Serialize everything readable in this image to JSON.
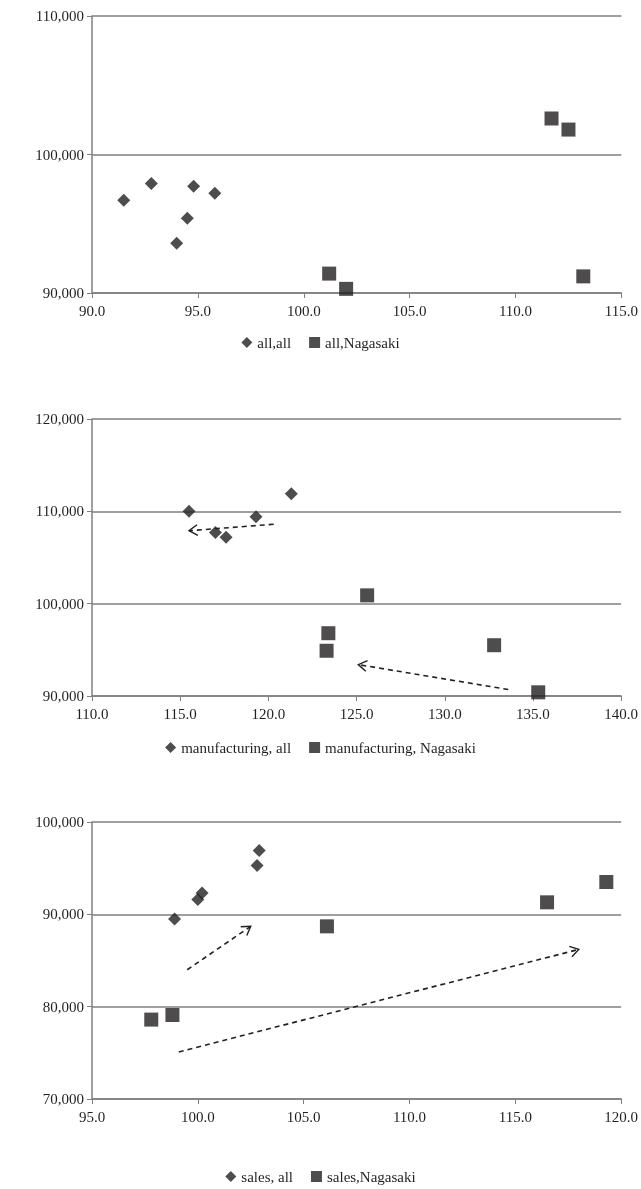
{
  "chart_data": [
    {
      "type": "scatter",
      "xlim": [
        90,
        115
      ],
      "xticks": [
        {
          "value": 90,
          "label": "90.0"
        },
        {
          "value": 95,
          "label": "95.0"
        },
        {
          "value": 100,
          "label": "100.0"
        },
        {
          "value": 105,
          "label": "105.0"
        },
        {
          "value": 110,
          "label": "110.0"
        },
        {
          "value": 115,
          "label": "115.0"
        }
      ],
      "ylim": [
        90000,
        110000
      ],
      "yticks": [
        {
          "value": 90000,
          "label": "90,000"
        },
        {
          "value": 100000,
          "label": "100,000"
        },
        {
          "value": 110000,
          "label": "110,000"
        }
      ],
      "grid": "y",
      "legend": "bottom",
      "series": [
        {
          "name": "all,all",
          "color": "#231f20",
          "marker": "diamond",
          "x": [
            91.5,
            92.8,
            94.0,
            94.5,
            94.8,
            95.8
          ],
          "values": [
            96700,
            97900,
            93600,
            95400,
            97700,
            97200
          ]
        },
        {
          "name": "all,Nagasaki",
          "color": "#231f20",
          "marker": "square",
          "x": [
            101.2,
            102.0,
            111.7,
            112.5,
            113.2
          ],
          "values": [
            91400,
            90300,
            102600,
            101800,
            91200
          ]
        }
      ]
    },
    {
      "type": "scatter",
      "xlim": [
        110,
        140
      ],
      "xticks": [
        {
          "value": 110,
          "label": "110.0"
        },
        {
          "value": 115,
          "label": "115.0"
        },
        {
          "value": 120,
          "label": "120.0"
        },
        {
          "value": 125,
          "label": "125.0"
        },
        {
          "value": 130,
          "label": "130.0"
        },
        {
          "value": 135,
          "label": "135.0"
        },
        {
          "value": 140,
          "label": "140.0"
        }
      ],
      "ylim": [
        90000,
        120000
      ],
      "yticks": [
        {
          "value": 90000,
          "label": "90,000"
        },
        {
          "value": 100000,
          "label": "100,000"
        },
        {
          "value": 110000,
          "label": "110,000"
        },
        {
          "value": 120000,
          "label": "120,000"
        }
      ],
      "grid": "y",
      "legend": "bottom",
      "series": [
        {
          "name": "manufacturing, all",
          "color": "#231f20",
          "marker": "diamond",
          "x": [
            115.5,
            117.0,
            117.6,
            119.3,
            121.3
          ],
          "values": [
            110000,
            107700,
            107200,
            109400,
            111900
          ]
        },
        {
          "name": "manufacturing, Nagasaki",
          "color": "#231f20",
          "marker": "square",
          "x": [
            123.3,
            123.4,
            125.6,
            132.8,
            135.3
          ],
          "values": [
            94900,
            96800,
            100900,
            95500,
            90400
          ]
        }
      ]
    },
    {
      "type": "scatter",
      "xlim": [
        95,
        120
      ],
      "xticks": [
        {
          "value": 95,
          "label": "95.0"
        },
        {
          "value": 100,
          "label": "100.0"
        },
        {
          "value": 105,
          "label": "105.0"
        },
        {
          "value": 110,
          "label": "110.0"
        },
        {
          "value": 115,
          "label": "115.0"
        },
        {
          "value": 120,
          "label": "120.0"
        }
      ],
      "ylim": [
        70000,
        100000
      ],
      "yticks": [
        {
          "value": 70000,
          "label": "70,000"
        },
        {
          "value": 80000,
          "label": "80,000"
        },
        {
          "value": 90000,
          "label": "90,000"
        },
        {
          "value": 100000,
          "label": "100,000"
        }
      ],
      "grid": "y",
      "legend": "bottom",
      "series": [
        {
          "name": "sales, all",
          "color": "#231f20",
          "marker": "diamond",
          "x": [
            98.9,
            100.0,
            100.2,
            102.8,
            102.9
          ],
          "values": [
            89500,
            91600,
            92300,
            95300,
            96900
          ]
        },
        {
          "name": "sales,Nagasaki",
          "color": "#231f20",
          "marker": "square",
          "x": [
            97.8,
            98.8,
            106.1,
            116.5,
            119.3
          ],
          "values": [
            78600,
            79100,
            88700,
            91300,
            93500
          ]
        }
      ]
    }
  ]
}
